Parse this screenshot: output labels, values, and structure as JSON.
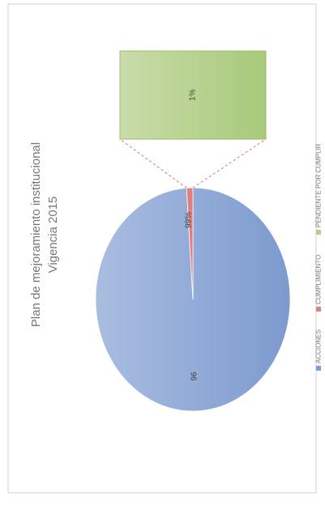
{
  "chart_data": {
    "type": "pie-of-bar",
    "title": "Plan de mejoramiento institucional",
    "subtitle": "Vigencia 2015",
    "categories": [
      "ACCIONES",
      "CUMPLIMIENTO",
      "PENDIENTE POR CUMPLIR"
    ],
    "values": [
      96,
      99,
      1
    ],
    "value_labels": [
      "96",
      "99%",
      "1%"
    ],
    "colors": [
      "#7f9bd0",
      "#e07f7f",
      "#b5d08a"
    ]
  }
}
